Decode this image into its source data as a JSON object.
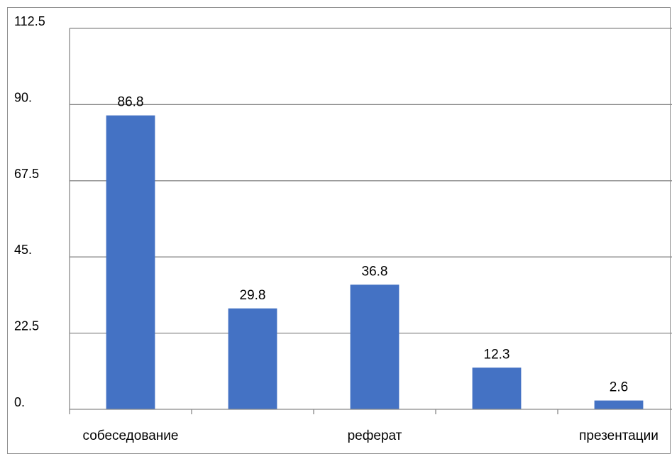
{
  "chart_data": {
    "type": "bar",
    "categories": [
      "собеседование",
      "",
      "реферат",
      "",
      "презентации"
    ],
    "values": [
      86.8,
      29.8,
      36.8,
      12.3,
      2.6
    ],
    "data_labels": [
      "86.8",
      "29.8",
      "36.8",
      "12.3",
      "2.6"
    ],
    "title": "",
    "xlabel": "",
    "ylabel": "",
    "ylim": [
      0,
      112.5
    ],
    "y_ticks": [
      0,
      22.5,
      45,
      67.5,
      90,
      112.5
    ],
    "y_tick_labels": [
      "0.",
      "22.5",
      "45.",
      "67.5",
      "90.",
      "112.5"
    ],
    "grid": true,
    "legend": "none",
    "colors": {
      "bar": "#4472C4",
      "grid": "#898989",
      "axis": "#898989",
      "frame": "#8c8c8c"
    }
  }
}
